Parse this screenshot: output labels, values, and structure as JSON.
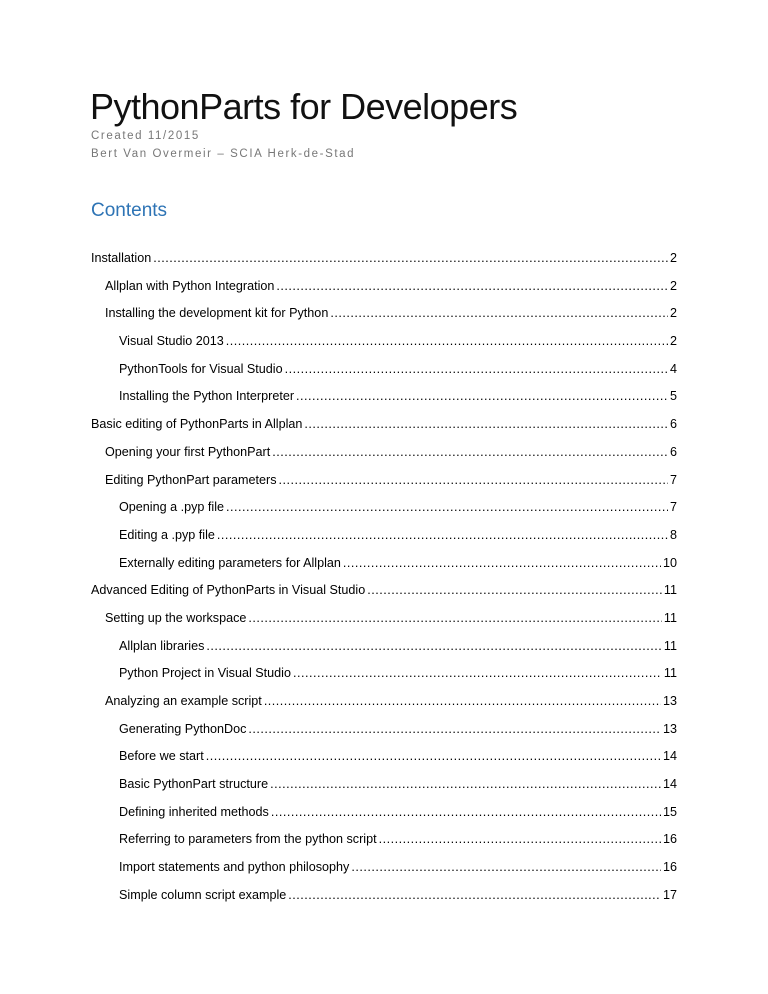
{
  "title": "PythonParts for Developers",
  "created": "Created 11/2015",
  "author": "Bert Van Overmeir – SCIA Herk-de-Stad",
  "contents_heading": "Contents",
  "toc": [
    {
      "label": "Installation",
      "page": "2",
      "level": 1
    },
    {
      "label": "Allplan with Python Integration",
      "page": "2",
      "level": 2
    },
    {
      "label": "Installing the development kit for Python",
      "page": "2",
      "level": 2
    },
    {
      "label": "Visual Studio 2013",
      "page": "2",
      "level": 3
    },
    {
      "label": "PythonTools for Visual Studio",
      "page": "4",
      "level": 3
    },
    {
      "label": "Installing the Python Interpreter",
      "page": "5",
      "level": 3
    },
    {
      "label": "Basic editing of PythonParts in Allplan",
      "page": "6",
      "level": 1
    },
    {
      "label": "Opening your first PythonPart",
      "page": "6",
      "level": 2
    },
    {
      "label": "Editing PythonPart parameters",
      "page": "7",
      "level": 2
    },
    {
      "label": "Opening a .pyp file",
      "page": "7",
      "level": 3
    },
    {
      "label": "Editing a .pyp file",
      "page": "8",
      "level": 3
    },
    {
      "label": "Externally editing parameters for Allplan",
      "page": "10",
      "level": 3
    },
    {
      "label": "Advanced Editing of PythonParts in Visual Studio",
      "page": "11",
      "level": 1
    },
    {
      "label": "Setting up the workspace",
      "page": "11",
      "level": 2
    },
    {
      "label": "Allplan libraries",
      "page": "11",
      "level": 3
    },
    {
      "label": "Python Project in Visual Studio",
      "page": "11",
      "level": 3
    },
    {
      "label": "Analyzing an example script",
      "page": "13",
      "level": 2
    },
    {
      "label": "Generating PythonDoc",
      "page": "13",
      "level": 3
    },
    {
      "label": "Before we start",
      "page": "14",
      "level": 3
    },
    {
      "label": "Basic PythonPart structure",
      "page": "14",
      "level": 3
    },
    {
      "label": "Defining inherited methods",
      "page": "15",
      "level": 3
    },
    {
      "label": "Referring to parameters from the python script",
      "page": "16",
      "level": 3
    },
    {
      "label": "Import statements and python philosophy",
      "page": "16",
      "level": 3
    },
    {
      "label": "Simple column script example",
      "page": "17",
      "level": 3
    }
  ]
}
